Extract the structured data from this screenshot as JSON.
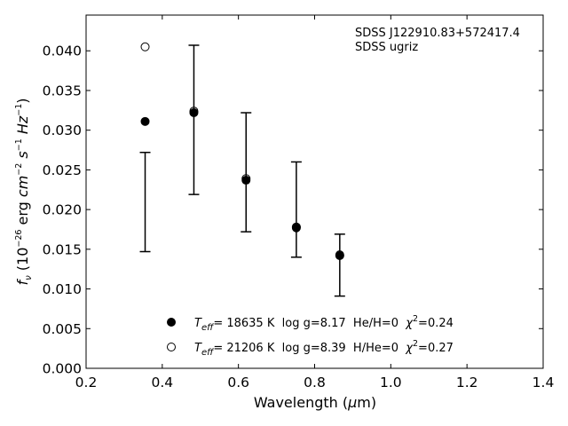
{
  "chart_data": {
    "type": "scatter",
    "title": "",
    "xlabel": "Wavelength (μm)",
    "ylabel": "f_ν (10^-26 erg cm^-2 s^-1 Hz^-1)",
    "xlim": [
      0.2,
      1.4
    ],
    "ylim": [
      0.0,
      0.0445
    ],
    "x_ticks": [
      0.2,
      0.4,
      0.6,
      0.8,
      1.0,
      1.2,
      1.4
    ],
    "x_tick_labels": [
      "0.2",
      "0.4",
      "0.6",
      "0.8",
      "1.0",
      "1.2",
      "1.4"
    ],
    "y_ticks": [
      0.0,
      0.005,
      0.01,
      0.015,
      0.02,
      0.025,
      0.03,
      0.035,
      0.04
    ],
    "y_tick_labels": [
      "0.000",
      "0.005",
      "0.010",
      "0.015",
      "0.020",
      "0.025",
      "0.030",
      "0.035",
      "0.040"
    ],
    "grid": false,
    "annotations": [
      "SDSS J122910.83+572417.4",
      "SDSS ugriz"
    ],
    "observed": {
      "x": [
        0.3551,
        0.4686,
        0.6166,
        0.748,
        0.8932
      ],
      "y": [
        0.021,
        0.0313,
        0.0247,
        0.02,
        0.013
      ],
      "yerr": [
        0.0063,
        0.0094,
        0.0075,
        0.006,
        0.0039
      ],
      "errorbar_x": [
        0.355,
        0.483,
        0.62,
        0.752,
        0.866
      ],
      "errorbar_low": [
        0.0147,
        0.0219,
        0.0172,
        0.014,
        0.0091
      ],
      "errorbar_high": [
        0.0272,
        0.0407,
        0.0322,
        0.026,
        0.0169
      ]
    },
    "series": [
      {
        "marker": "filled-circle",
        "x": [
          0.355,
          0.483,
          0.62,
          0.752,
          0.866
        ],
        "y": [
          0.0311,
          0.0322,
          0.0237,
          0.0177,
          0.0142
        ]
      },
      {
        "marker": "open-circle",
        "x": [
          0.355,
          0.483,
          0.62,
          0.752,
          0.866
        ],
        "y": [
          0.0405,
          0.0324,
          0.0239,
          0.0178,
          0.0143
        ]
      }
    ],
    "legend": {
      "position": "lower-center",
      "entries": [
        {
          "marker": "filled-circle",
          "T_symbol": "T",
          "T_subscript": "eff",
          "T_text": "= 18635 K  log g=8.17  He/H=0  ",
          "chi_symbol": "χ",
          "chi_superscript": "2",
          "chi_text": "=0.24"
        },
        {
          "marker": "open-circle",
          "T_symbol": "T",
          "T_subscript": "eff",
          "T_text": "= 21206 K  log g=8.39  H/He=0  ",
          "chi_symbol": "χ",
          "chi_superscript": "2",
          "chi_text": "=0.27"
        }
      ]
    },
    "ylabel_parts": {
      "f": "f",
      "nu": "ν",
      "open": " (10",
      "exp1": "−26",
      "erg": " erg ",
      "cm": "cm",
      "exp2": "−2",
      "s": " s",
      "exp3": "−1",
      "hz": " Hz",
      "exp4": "−1",
      "close": ")"
    },
    "xlabel_parts": {
      "pre": "Wavelength (",
      "mu": "μ",
      "post": "m)"
    }
  }
}
